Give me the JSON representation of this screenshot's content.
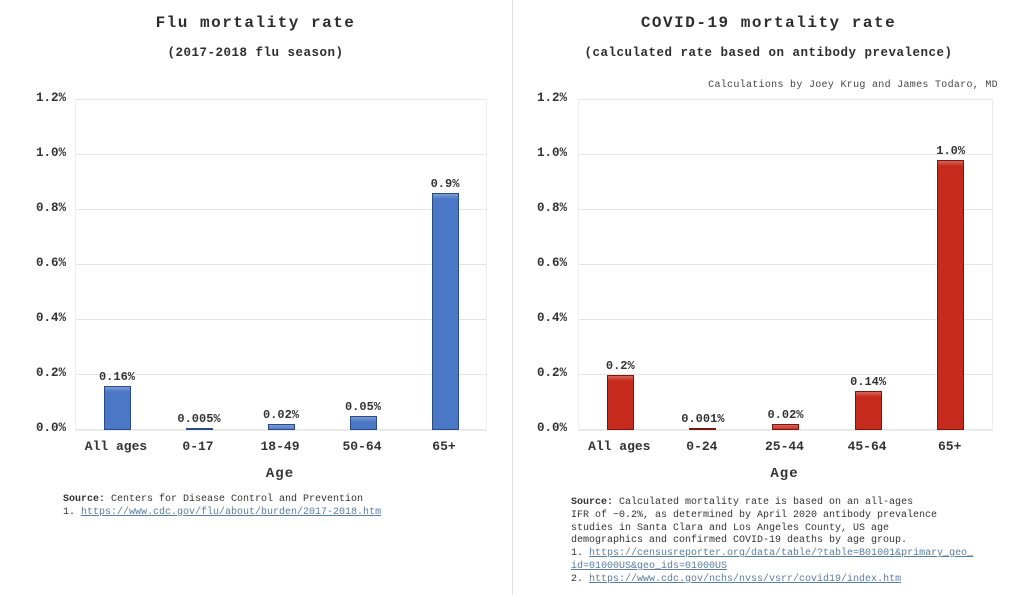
{
  "chart_data": [
    {
      "type": "bar",
      "title": "Flu mortality rate",
      "subtitle": "(2017-2018 flu season)",
      "annotation": "",
      "xlabel": "Age",
      "categories": [
        "All ages",
        "0-17",
        "18-49",
        "50-64",
        "65+"
      ],
      "values": [
        0.16,
        0.005,
        0.02,
        0.05,
        0.86
      ],
      "value_labels": [
        "0.16%",
        "0.005%",
        "0.02%",
        "0.05%",
        "0.9%"
      ],
      "ylim": [
        0,
        1.2
      ],
      "ytick_labels": [
        "0.0%",
        "0.2%",
        "0.4%",
        "0.6%",
        "0.8%",
        "1.0%",
        "1.2%"
      ],
      "grid": true,
      "legend": "none",
      "bar_color": "#4a77c6",
      "bar_border_color": "#2a4a85",
      "source_label": "Source:",
      "source_lines": [
        "Centers for Disease Control and Prevention"
      ],
      "links": [
        {
          "prefix": "1.",
          "url": "https://www.cdc.gov/flu/about/burden/2017-2018.htm"
        }
      ]
    },
    {
      "type": "bar",
      "title": "COVID-19 mortality rate",
      "subtitle": "(calculated rate based on antibody prevalence)",
      "annotation": "Calculations by Joey Krug and James Todaro, MD",
      "xlabel": "Age",
      "categories": [
        "All ages",
        "0-24",
        "25-44",
        "45-64",
        "65+"
      ],
      "values": [
        0.2,
        0.001,
        0.02,
        0.14,
        0.98
      ],
      "value_labels": [
        "0.2%",
        "0.001%",
        "0.02%",
        "0.14%",
        "1.0%"
      ],
      "ylim": [
        0,
        1.2
      ],
      "ytick_labels": [
        "0.0%",
        "0.2%",
        "0.4%",
        "0.6%",
        "0.8%",
        "1.0%",
        "1.2%"
      ],
      "grid": true,
      "legend": "none",
      "bar_color": "#c52a1d",
      "bar_border_color": "#7e150c",
      "source_label": "Source:",
      "source_lines": [
        "Calculated mortality rate is based on an all-ages",
        "IFR of ~0.2%, as determined by April 2020 antibody prevalence",
        "studies in Santa Clara and Los Angeles County, US age",
        "demographics and confirmed COVID-19 deaths by age group."
      ],
      "links": [
        {
          "prefix": "1.",
          "url": "https://censusreporter.org/data/table/?table=B01001&primary_geo_id=01000US&geo_ids=01000US"
        },
        {
          "prefix": "2.",
          "url": "https://www.cdc.gov/nchs/nvss/vsrr/covid19/index.htm"
        }
      ]
    }
  ]
}
